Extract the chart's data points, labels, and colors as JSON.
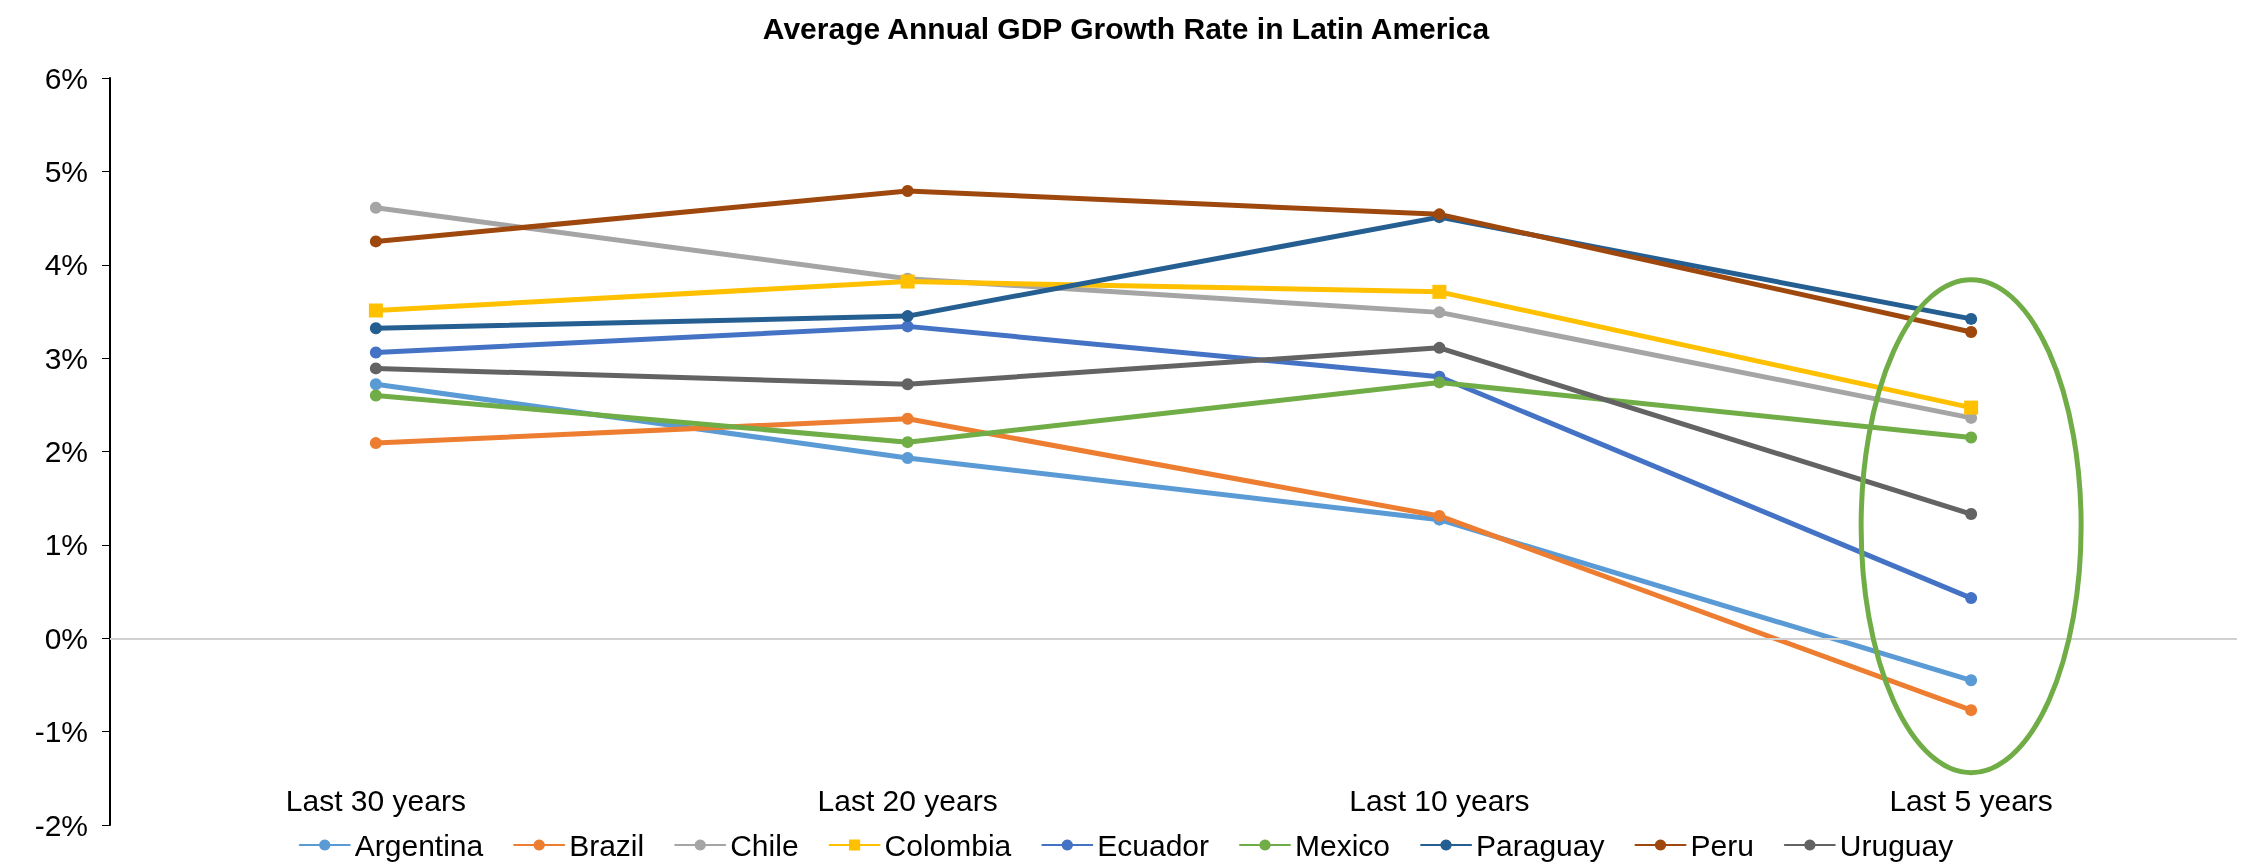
{
  "chart_data": {
    "type": "line",
    "title": "Average Annual GDP Growth Rate in Latin America",
    "categories": [
      "Last 30 years",
      "Last 20 years",
      "Last 10 years",
      "Last 5 years"
    ],
    "ylim": [
      -2,
      6
    ],
    "yticks": [
      {
        "value": -2,
        "label": "-2%"
      },
      {
        "value": -1,
        "label": "-1%"
      },
      {
        "value": 0,
        "label": "0%"
      },
      {
        "value": 1,
        "label": "1%"
      },
      {
        "value": 2,
        "label": "2%"
      },
      {
        "value": 3,
        "label": "3%"
      },
      {
        "value": 4,
        "label": "4%"
      },
      {
        "value": 5,
        "label": "5%"
      },
      {
        "value": 6,
        "label": "6%"
      }
    ],
    "grid": false,
    "ref_lines": [
      {
        "axis": "y",
        "value": 0,
        "color": "#d0d0d0"
      }
    ],
    "legend": "bottom",
    "marker": "circle",
    "line_style": "solid",
    "series": [
      {
        "name": "Argentina",
        "color": "#5b9bd5",
        "values": [
          2.72,
          1.93,
          1.27,
          -0.45
        ]
      },
      {
        "name": "Brazil",
        "color": "#ed7d31",
        "values": [
          2.09,
          2.35,
          1.31,
          -0.77
        ]
      },
      {
        "name": "Chile",
        "color": "#a5a5a5",
        "values": [
          4.61,
          3.85,
          3.49,
          2.36
        ]
      },
      {
        "name": "Colombia",
        "color": "#ffc000",
        "marker": "square",
        "values": [
          3.51,
          3.82,
          3.71,
          2.47
        ]
      },
      {
        "name": "Ecuador",
        "color": "#4472c4",
        "values": [
          3.06,
          3.34,
          2.8,
          0.43
        ]
      },
      {
        "name": "Mexico",
        "color": "#70ad47",
        "values": [
          2.6,
          2.1,
          2.74,
          2.15
        ]
      },
      {
        "name": "Paraguay",
        "color": "#255e91",
        "values": [
          3.32,
          3.45,
          4.51,
          3.42
        ]
      },
      {
        "name": "Peru",
        "color": "#9e480e",
        "values": [
          4.25,
          4.79,
          4.54,
          3.28
        ]
      },
      {
        "name": "Uruguay",
        "color": "#636363",
        "values": [
          2.89,
          2.72,
          3.11,
          1.33
        ]
      }
    ]
  }
}
